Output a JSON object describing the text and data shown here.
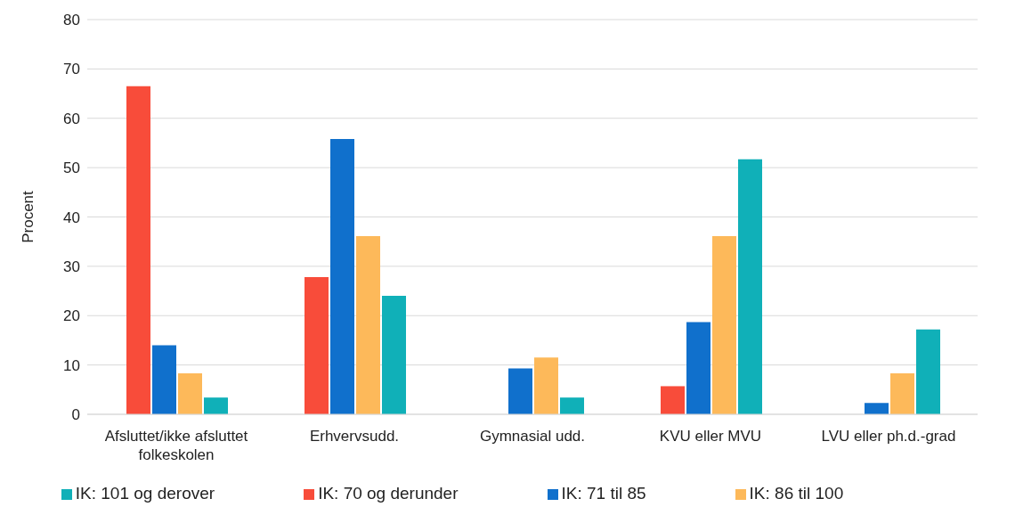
{
  "chart_data": {
    "type": "bar",
    "ylabel": "Procent",
    "categories": [
      "Afsluttet/ikke afsluttet folkeskolen",
      "Erhvervsudd.",
      "Gymnasial udd.",
      "KVU eller MVU",
      "LVU eller ph.d.-grad"
    ],
    "series": [
      {
        "name": "IK: 70 og derunder",
        "color": "#f84c3a",
        "values": [
          66.5,
          27.8,
          null,
          5.7,
          null
        ]
      },
      {
        "name": "IK: 71 til 85",
        "color": "#1070cc",
        "values": [
          14.0,
          55.8,
          9.3,
          18.7,
          2.3
        ]
      },
      {
        "name": "IK: 86 til 100",
        "color": "#fdb95a",
        "values": [
          8.3,
          36.1,
          11.5,
          36.1,
          8.3
        ]
      },
      {
        "name": "IK: 101 og derover",
        "color": "#10b0b8",
        "values": [
          3.4,
          24.0,
          3.4,
          51.7,
          17.2
        ]
      }
    ],
    "ylim": [
      0,
      80
    ],
    "yticks": [
      0,
      10,
      20,
      30,
      40,
      50,
      60,
      70,
      80
    ],
    "grid": "y",
    "legend": "bottom"
  }
}
